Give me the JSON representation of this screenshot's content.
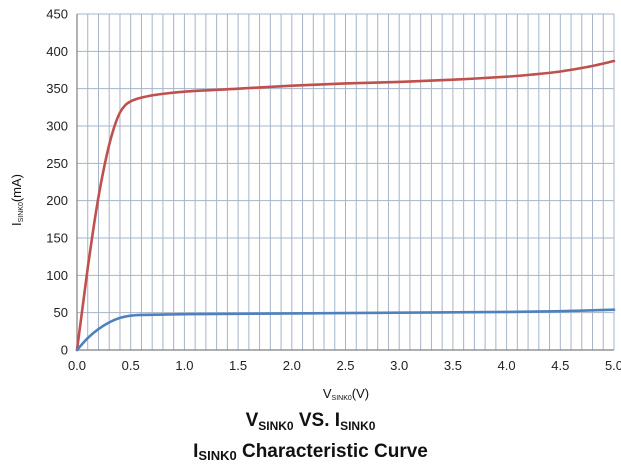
{
  "chart_data": {
    "type": "line",
    "title_line1": {
      "main_a": "V",
      "sub_a": "SINK0",
      "mid": " VS. ",
      "main_b": "I",
      "sub_b": "SINK0"
    },
    "title_line2": {
      "main": "I",
      "sub": "SINK0",
      "rest": " Characteristic Curve"
    },
    "xlabel": {
      "main": "V",
      "sub": "SINK0",
      "unit": "(V)"
    },
    "ylabel": {
      "main": "I",
      "sub": "SINK0",
      "unit": "(mA)"
    },
    "xlim": [
      0,
      5.0
    ],
    "ylim": [
      0,
      450
    ],
    "x_ticks": [
      "0.0",
      "0.5",
      "1.0",
      "1.5",
      "2.0",
      "2.5",
      "3.0",
      "3.5",
      "4.0",
      "4.5",
      "5.0"
    ],
    "y_ticks": [
      "0",
      "50",
      "100",
      "150",
      "200",
      "250",
      "300",
      "350",
      "400",
      "450"
    ],
    "grid": true,
    "series": [
      {
        "color": "#c0504d",
        "x": [
          0,
          0.05,
          0.1,
          0.15,
          0.2,
          0.25,
          0.3,
          0.35,
          0.4,
          0.45,
          0.5,
          0.55,
          0.6,
          0.7,
          0.8,
          1.0,
          1.5,
          2.0,
          2.5,
          3.0,
          3.5,
          4.0,
          4.25,
          4.5,
          4.75,
          5.0
        ],
        "y": [
          0,
          55,
          110,
          160,
          205,
          243,
          275,
          300,
          318,
          328,
          333,
          336,
          338,
          341,
          343,
          346,
          350,
          354,
          357,
          359,
          362,
          366,
          369,
          373,
          379,
          387
        ]
      },
      {
        "color": "#4f81bd",
        "x": [
          0,
          0.1,
          0.2,
          0.3,
          0.4,
          0.5,
          0.6,
          0.8,
          1.0,
          2.0,
          3.0,
          4.0,
          4.5,
          5.0
        ],
        "y": [
          0,
          16,
          28,
          37,
          43,
          46,
          47,
          47.5,
          48,
          49,
          50,
          51,
          52,
          54
        ]
      }
    ]
  },
  "colors": {
    "grid": "#a6b4c8",
    "axis": "#7f7f7f",
    "red": "#c0504d",
    "blue": "#4f81bd"
  }
}
